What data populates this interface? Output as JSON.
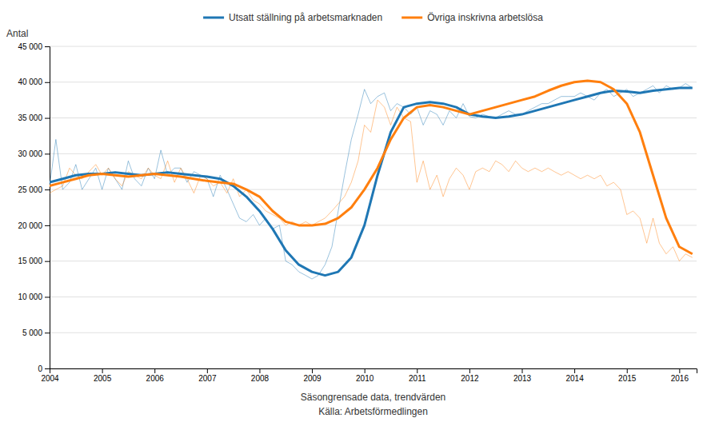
{
  "chart_data": {
    "type": "line",
    "ylabel": "Antal",
    "xlabel": "Säsongrensade data, trendvärden",
    "annotations": [
      "Källa: Arbetsförmedlingen"
    ],
    "xlim": [
      2004.0,
      2016.33
    ],
    "xticks": [
      2004,
      2005,
      2006,
      2007,
      2008,
      2009,
      2010,
      2011,
      2012,
      2013,
      2014,
      2015,
      2016
    ],
    "ylim": [
      0,
      45000
    ],
    "yticks": [
      0,
      {
        "value": 5000,
        "label": "5 000"
      },
      {
        "value": 10000,
        "label": "10 000"
      },
      {
        "value": 15000,
        "label": "15 000"
      },
      {
        "value": 20000,
        "label": "20 000"
      },
      {
        "value": 25000,
        "label": "25 000"
      },
      {
        "value": 30000,
        "label": "30 000"
      },
      {
        "value": 35000,
        "label": "35 000"
      },
      {
        "value": 40000,
        "label": "40 000"
      },
      {
        "value": 45000,
        "label": "45 000"
      }
    ],
    "grid": true,
    "legend": "top",
    "series": [
      {
        "color": "#1f77b4",
        "x": [
          2004.0,
          2004.12,
          2004.25,
          2004.38,
          2004.5,
          2004.62,
          2004.75,
          2004.88,
          2005.0,
          2005.12,
          2005.25,
          2005.38,
          2005.5,
          2005.62,
          2005.75,
          2005.88,
          2006.0,
          2006.12,
          2006.25,
          2006.38,
          2006.5,
          2006.62,
          2006.75,
          2006.88,
          2007.0,
          2007.12,
          2007.25,
          2007.38,
          2007.5,
          2007.62,
          2007.75,
          2007.88,
          2008.0,
          2008.12,
          2008.25,
          2008.38,
          2008.5,
          2008.62,
          2008.75,
          2008.88,
          2009.0,
          2009.12,
          2009.25,
          2009.38,
          2009.5,
          2009.62,
          2009.75,
          2009.88,
          2010.0,
          2010.12,
          2010.25,
          2010.38,
          2010.5,
          2010.62,
          2010.75,
          2010.88,
          2011.0,
          2011.12,
          2011.25,
          2011.38,
          2011.5,
          2011.62,
          2011.75,
          2011.88,
          2012.0,
          2012.12,
          2012.25,
          2012.38,
          2012.5,
          2012.62,
          2012.75,
          2012.88,
          2013.0,
          2013.12,
          2013.25,
          2013.38,
          2013.5,
          2013.62,
          2013.75,
          2013.88,
          2014.0,
          2014.12,
          2014.25,
          2014.38,
          2014.5,
          2014.62,
          2014.75,
          2014.88,
          2015.0,
          2015.12,
          2015.25,
          2015.38,
          2015.5,
          2015.62,
          2015.75,
          2015.88,
          2016.0,
          2016.12,
          2016.25
        ],
        "values": [
          25500,
          32000,
          25000,
          26000,
          28500,
          25000,
          26500,
          28000,
          25000,
          28000,
          26500,
          25000,
          29000,
          26500,
          25500,
          28000,
          26500,
          30500,
          27000,
          28000,
          28000,
          26000,
          27500,
          27000,
          26500,
          24000,
          27000,
          25000,
          23000,
          21000,
          20500,
          21500,
          20000,
          21000,
          19500,
          20000,
          15000,
          14500,
          13500,
          13000,
          12500,
          13000,
          14500,
          17000,
          22000,
          27000,
          32000,
          35500,
          39000,
          37000,
          38000,
          38500,
          36000,
          37000,
          36500,
          35500,
          36500,
          34000,
          36000,
          35500,
          34000,
          36000,
          35000,
          37000,
          35200,
          35000,
          35500,
          35200,
          35000,
          35500,
          36000,
          35500,
          35500,
          36000,
          36500,
          37000,
          37000,
          37500,
          38000,
          38000,
          38000,
          38500,
          38000,
          37500,
          38500,
          39000,
          38000,
          38500,
          39000,
          38000,
          38500,
          39000,
          39500,
          38500,
          39500,
          39000,
          39200,
          39800,
          39200
        ]
      },
      {
        "color": "#ff7f0e",
        "x": [
          2004.0,
          2004.12,
          2004.25,
          2004.38,
          2004.5,
          2004.62,
          2004.75,
          2004.88,
          2005.0,
          2005.12,
          2005.25,
          2005.38,
          2005.5,
          2005.62,
          2005.75,
          2005.88,
          2006.0,
          2006.12,
          2006.25,
          2006.38,
          2006.5,
          2006.62,
          2006.75,
          2006.88,
          2007.0,
          2007.12,
          2007.25,
          2007.38,
          2007.5,
          2007.62,
          2007.75,
          2007.88,
          2008.0,
          2008.12,
          2008.25,
          2008.38,
          2008.5,
          2008.62,
          2008.75,
          2008.88,
          2009.0,
          2009.12,
          2009.25,
          2009.38,
          2009.5,
          2009.62,
          2009.75,
          2009.88,
          2010.0,
          2010.12,
          2010.25,
          2010.38,
          2010.5,
          2010.62,
          2010.75,
          2010.88,
          2011.0,
          2011.12,
          2011.25,
          2011.38,
          2011.5,
          2011.62,
          2011.75,
          2011.88,
          2012.0,
          2012.12,
          2012.25,
          2012.38,
          2012.5,
          2012.62,
          2012.75,
          2012.88,
          2013.0,
          2013.12,
          2013.25,
          2013.38,
          2013.5,
          2013.62,
          2013.75,
          2013.88,
          2014.0,
          2014.12,
          2014.25,
          2014.38,
          2014.5,
          2014.62,
          2014.75,
          2014.88,
          2015.0,
          2015.12,
          2015.25,
          2015.38,
          2015.5,
          2015.62,
          2015.75,
          2015.88,
          2016.0,
          2016.12,
          2016.25
        ],
        "values": [
          24500,
          25000,
          25500,
          28000,
          27000,
          26500,
          27500,
          28500,
          27000,
          28000,
          26500,
          25500,
          27500,
          27000,
          26500,
          28000,
          27000,
          26500,
          29000,
          26000,
          28000,
          26500,
          24500,
          27000,
          26500,
          25500,
          26000,
          24500,
          26500,
          24000,
          25000,
          23500,
          23000,
          22000,
          21500,
          21000,
          20000,
          20500,
          20000,
          20500,
          20000,
          20500,
          21000,
          22000,
          23000,
          24000,
          26000,
          29000,
          34000,
          33000,
          37500,
          36500,
          34000,
          36500,
          35000,
          34500,
          26000,
          29000,
          25000,
          27000,
          24000,
          26500,
          28000,
          27000,
          25000,
          27500,
          28000,
          27500,
          29000,
          28500,
          27500,
          29000,
          28000,
          27500,
          28000,
          27500,
          28000,
          27500,
          27000,
          27500,
          27000,
          26500,
          27000,
          26500,
          27000,
          25500,
          26000,
          25000,
          21500,
          22000,
          21000,
          17500,
          21000,
          17500,
          16000,
          17000,
          15000,
          16000,
          15500
        ]
      },
      {
        "name": "Utsatt ställning på arbetsmarknaden",
        "color": "#1f77b4",
        "x": [
          2004.0,
          2004.25,
          2004.5,
          2004.75,
          2005.0,
          2005.25,
          2005.5,
          2005.75,
          2006.0,
          2006.25,
          2006.5,
          2006.75,
          2007.0,
          2007.25,
          2007.5,
          2007.75,
          2008.0,
          2008.25,
          2008.5,
          2008.75,
          2009.0,
          2009.25,
          2009.5,
          2009.75,
          2010.0,
          2010.25,
          2010.5,
          2010.75,
          2011.0,
          2011.25,
          2011.5,
          2011.75,
          2012.0,
          2012.25,
          2012.5,
          2012.75,
          2013.0,
          2013.25,
          2013.5,
          2013.75,
          2014.0,
          2014.25,
          2014.5,
          2014.75,
          2015.0,
          2015.25,
          2015.5,
          2015.75,
          2016.0,
          2016.25
        ],
        "values": [
          26000,
          26500,
          27000,
          27200,
          27200,
          27400,
          27200,
          27000,
          27200,
          27400,
          27200,
          27000,
          26800,
          26500,
          25500,
          24000,
          22000,
          19500,
          16500,
          14500,
          13500,
          13000,
          13500,
          15500,
          20000,
          27000,
          33000,
          36500,
          37000,
          37200,
          37000,
          36500,
          35500,
          35200,
          35000,
          35200,
          35500,
          36000,
          36500,
          37000,
          37500,
          38000,
          38500,
          38800,
          38700,
          38500,
          38800,
          39000,
          39200,
          39200
        ]
      },
      {
        "name": "Övriga inskrivna arbetslösa",
        "color": "#ff7f0e",
        "x": [
          2004.0,
          2004.25,
          2004.5,
          2004.75,
          2005.0,
          2005.25,
          2005.5,
          2005.75,
          2006.0,
          2006.25,
          2006.5,
          2006.75,
          2007.0,
          2007.25,
          2007.5,
          2007.75,
          2008.0,
          2008.25,
          2008.5,
          2008.75,
          2009.0,
          2009.25,
          2009.5,
          2009.75,
          2010.0,
          2010.25,
          2010.5,
          2010.75,
          2011.0,
          2011.25,
          2011.5,
          2011.75,
          2012.0,
          2012.25,
          2012.5,
          2012.75,
          2013.0,
          2013.25,
          2013.5,
          2013.75,
          2014.0,
          2014.25,
          2014.5,
          2014.75,
          2015.0,
          2015.25,
          2015.5,
          2015.75,
          2016.0,
          2016.25
        ],
        "values": [
          25500,
          26000,
          26500,
          27000,
          27200,
          27000,
          26800,
          27000,
          27200,
          27000,
          26800,
          26500,
          26200,
          26000,
          25800,
          25000,
          24000,
          22000,
          20500,
          20000,
          20000,
          20200,
          21000,
          22500,
          25000,
          28000,
          32000,
          35000,
          36500,
          36800,
          36500,
          36000,
          35500,
          36000,
          36500,
          37000,
          37500,
          38000,
          38800,
          39500,
          40000,
          40200,
          40000,
          39000,
          37000,
          33000,
          27000,
          21000,
          17000,
          16000
        ]
      }
    ]
  }
}
